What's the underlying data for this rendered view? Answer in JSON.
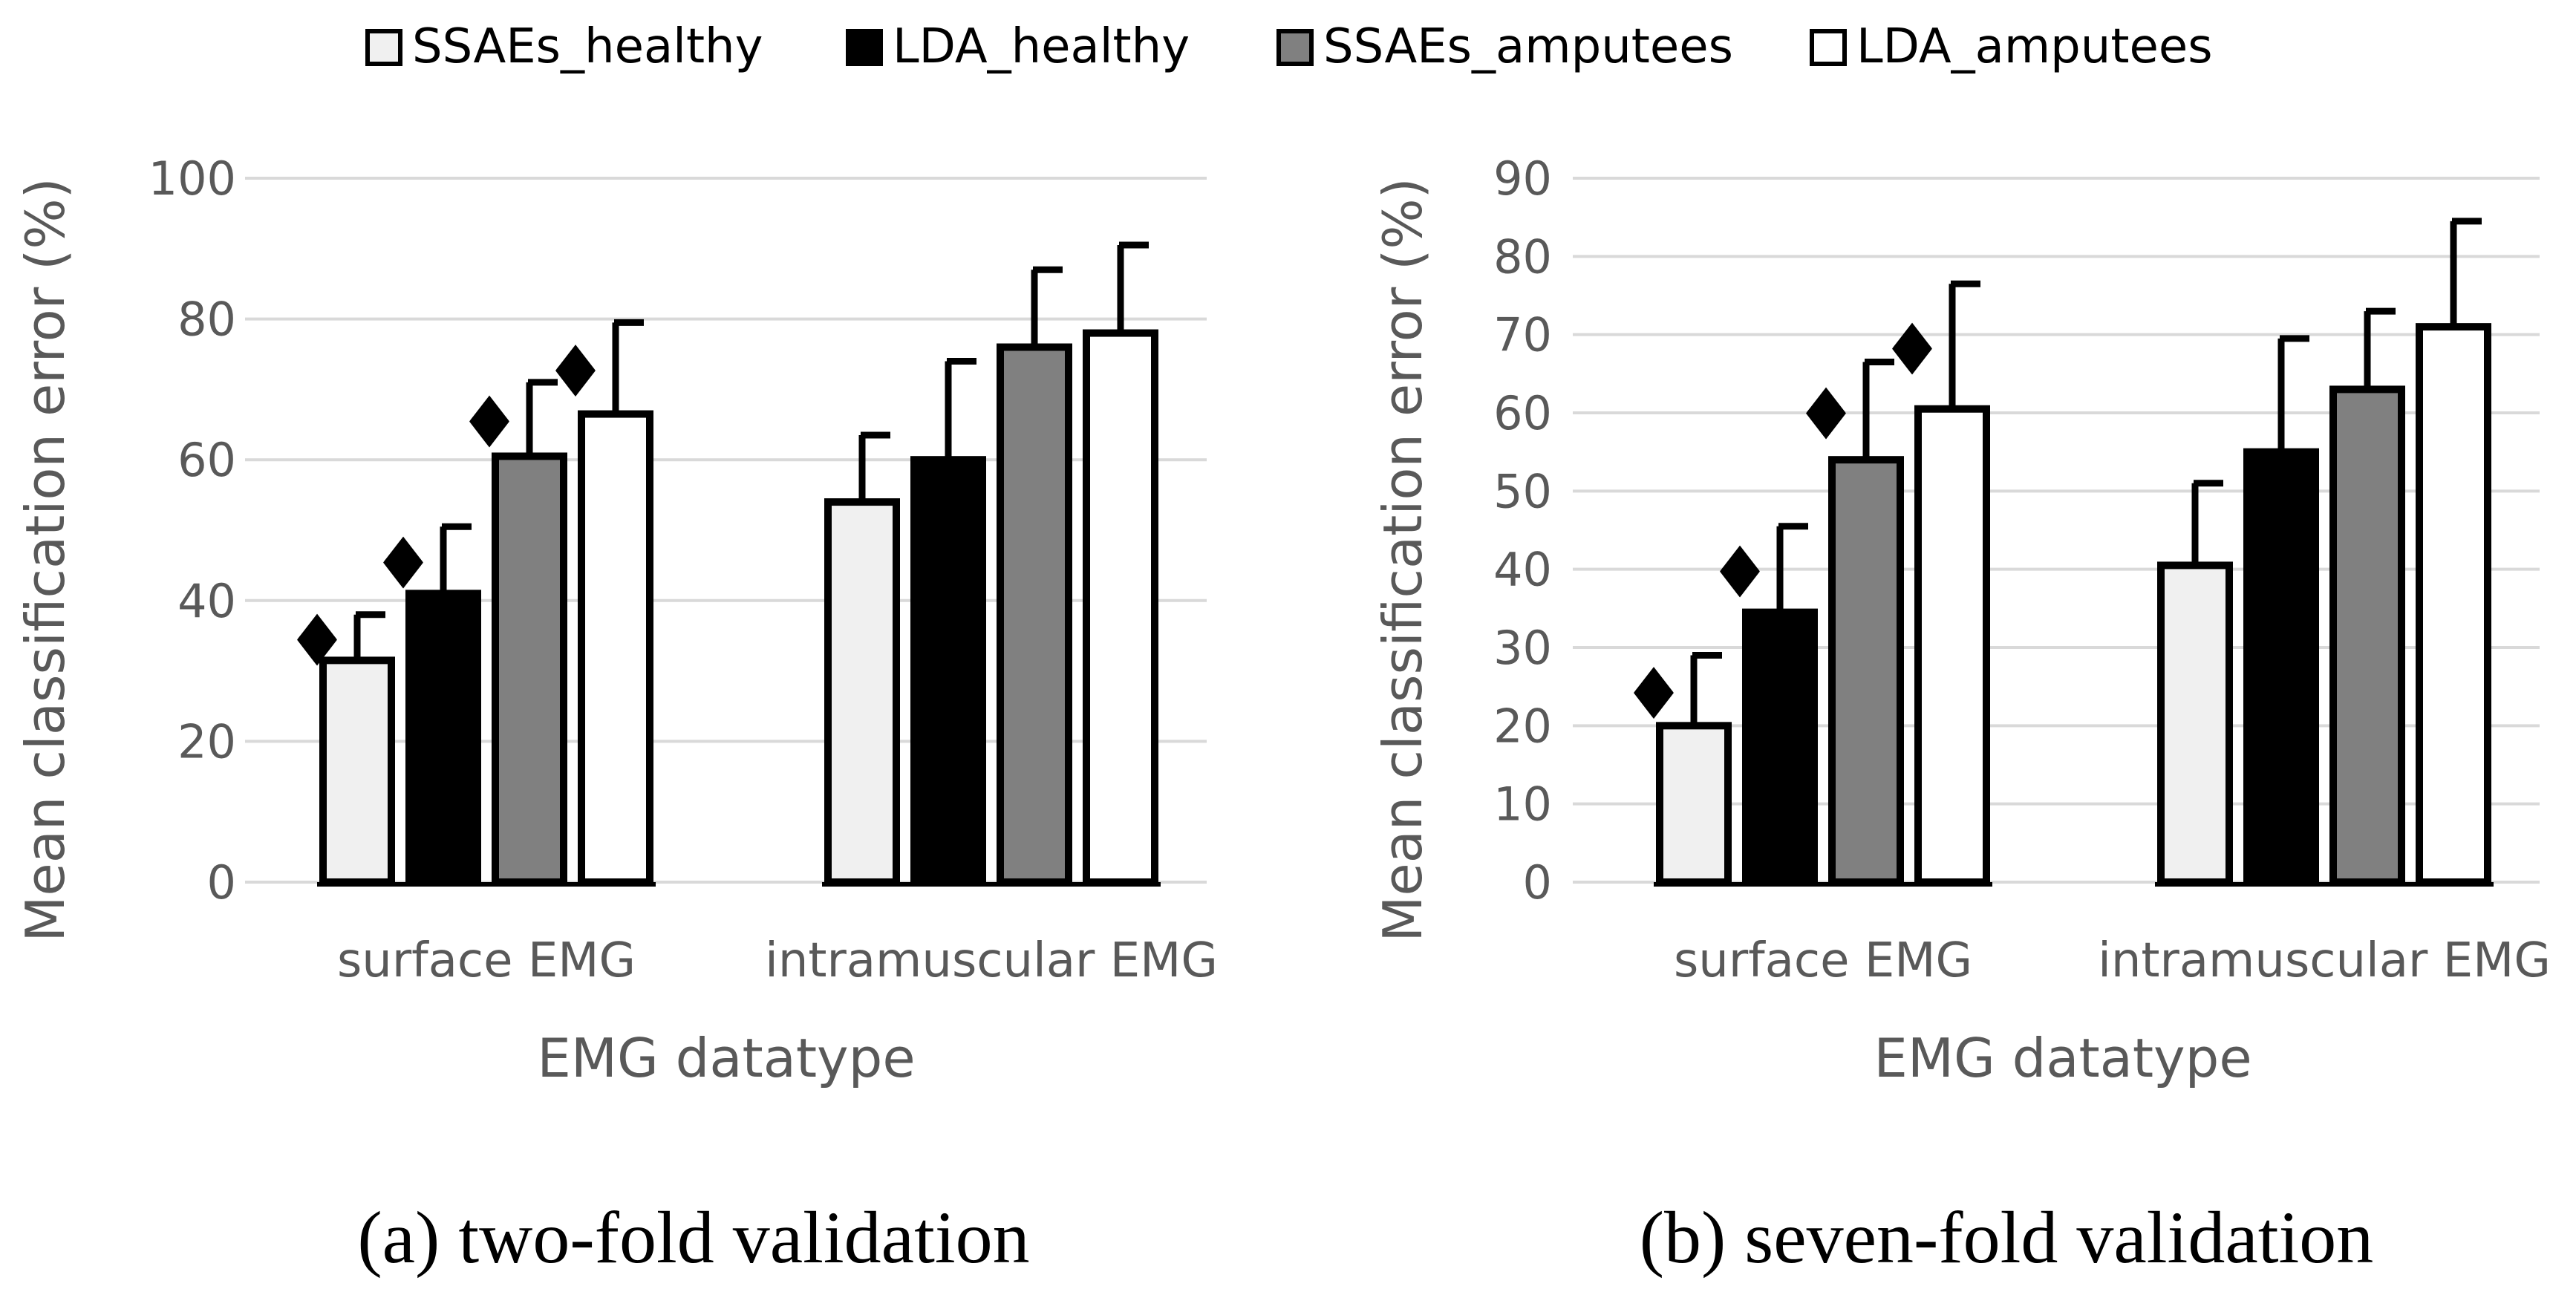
{
  "legend": [
    {
      "label": "SSAEs_healthy",
      "fill": "#f0f0f0"
    },
    {
      "label": "LDA_healthy",
      "fill": "#000000"
    },
    {
      "label": "SSAEs_amputees",
      "fill": "#808080"
    },
    {
      "label": "LDA_amputees",
      "fill": "#ffffff"
    }
  ],
  "significance_marker": "♦",
  "chart_data": [
    {
      "type": "bar",
      "caption": "(a) two-fold validation",
      "xlabel": "EMG datatype",
      "ylabel": "Mean classification error (%)",
      "ylim": [
        0,
        100
      ],
      "yticks": [
        0,
        20,
        40,
        60,
        80,
        100
      ],
      "grid": true,
      "categories": [
        "surface EMG",
        "intramuscular EMG"
      ],
      "series": [
        {
          "name": "SSAEs_healthy",
          "values": [
            31.5,
            54
          ],
          "errors": [
            6.5,
            9.5
          ],
          "significant": [
            true,
            false
          ]
        },
        {
          "name": "LDA_healthy",
          "values": [
            41,
            60
          ],
          "errors": [
            9.5,
            14
          ],
          "significant": [
            true,
            false
          ]
        },
        {
          "name": "SSAEs_amputees",
          "values": [
            60.5,
            76
          ],
          "errors": [
            10.5,
            11
          ],
          "significant": [
            true,
            false
          ]
        },
        {
          "name": "LDA_amputees",
          "values": [
            66.5,
            78
          ],
          "errors": [
            13,
            12.5
          ],
          "significant": [
            true,
            false
          ]
        }
      ]
    },
    {
      "type": "bar",
      "caption": "(b) seven-fold validation",
      "xlabel": "EMG datatype",
      "ylabel": "Mean classification error (%)",
      "ylim": [
        0,
        90
      ],
      "yticks": [
        0,
        10,
        20,
        30,
        40,
        50,
        60,
        70,
        80,
        90
      ],
      "grid": true,
      "categories": [
        "surface EMG",
        "intramuscular EMG"
      ],
      "series": [
        {
          "name": "SSAEs_healthy",
          "values": [
            20,
            40.5
          ],
          "errors": [
            9,
            10.5
          ],
          "significant": [
            true,
            false
          ]
        },
        {
          "name": "LDA_healthy",
          "values": [
            34.5,
            55
          ],
          "errors": [
            11,
            14.5
          ],
          "significant": [
            true,
            false
          ]
        },
        {
          "name": "SSAEs_amputees",
          "values": [
            54,
            63
          ],
          "errors": [
            12.5,
            10
          ],
          "significant": [
            true,
            false
          ]
        },
        {
          "name": "LDA_amputees",
          "values": [
            60.5,
            71
          ],
          "errors": [
            16,
            13.5
          ],
          "significant": [
            true,
            false
          ]
        }
      ]
    }
  ]
}
